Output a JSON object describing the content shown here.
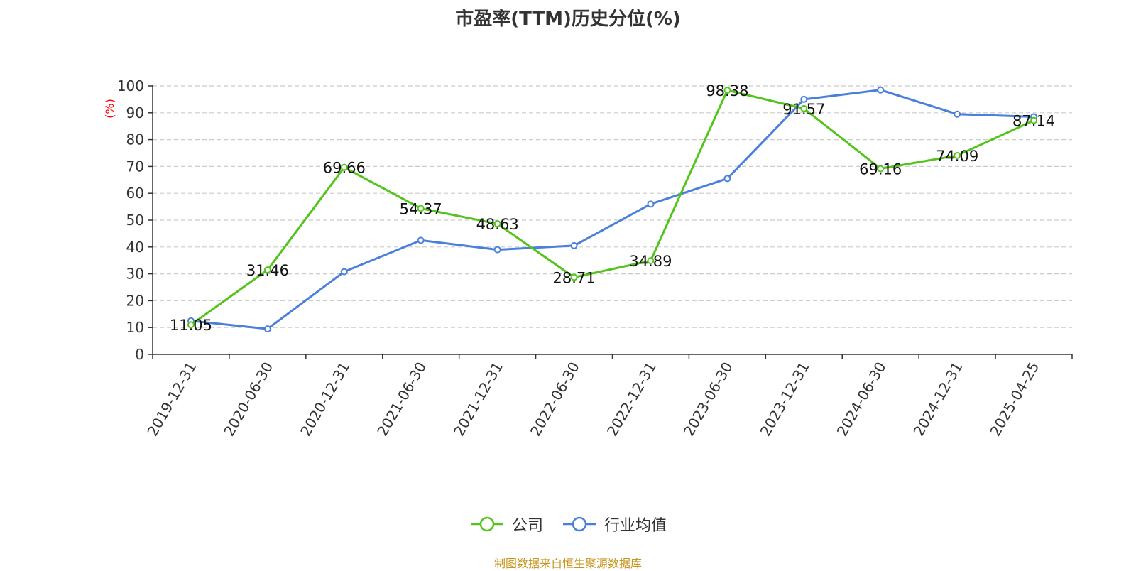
{
  "chart_data": {
    "type": "line",
    "title": "市盈率(TTM)历史分位(%)",
    "ylabel": "(%)",
    "xlabel": "",
    "ylim": [
      0,
      100
    ],
    "yticks": [
      0,
      10,
      20,
      30,
      40,
      50,
      60,
      70,
      80,
      90,
      100
    ],
    "grid": true,
    "legend_position": "bottom",
    "categories": [
      "2019-12-31",
      "2020-06-30",
      "2020-12-31",
      "2021-06-30",
      "2021-12-31",
      "2022-06-30",
      "2022-12-31",
      "2023-06-30",
      "2023-12-31",
      "2024-06-30",
      "2024-12-31",
      "2025-04-25"
    ],
    "series": [
      {
        "name": "公司",
        "color": "#52c41a",
        "show_labels": true,
        "values": [
          11.05,
          31.46,
          69.66,
          54.37,
          48.63,
          28.71,
          34.89,
          98.38,
          91.57,
          69.16,
          74.09,
          87.14
        ]
      },
      {
        "name": "行业均值",
        "color": "#4a7fdb",
        "show_labels": false,
        "values": [
          12.5,
          9.5,
          30.8,
          42.5,
          39.0,
          40.5,
          56.0,
          65.5,
          95.0,
          98.5,
          89.5,
          88.5
        ]
      }
    ]
  },
  "footer": {
    "source": "制图数据来自恒生聚源数据库"
  }
}
